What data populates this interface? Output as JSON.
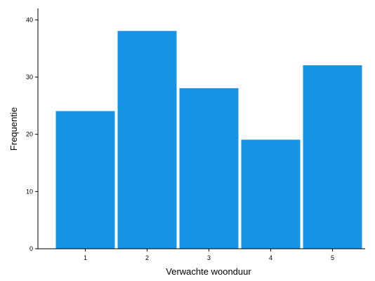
{
  "chart_data": {
    "type": "bar",
    "categories": [
      "1",
      "2",
      "3",
      "4",
      "5"
    ],
    "values": [
      24,
      38,
      28,
      19,
      32
    ],
    "xlabel": "Verwachte woonduur",
    "ylabel": "Frequentie",
    "ylim": [
      0,
      42
    ],
    "yticks": [
      0,
      10,
      20,
      30,
      40
    ],
    "bar_color": "#1793E6",
    "grid": false,
    "legend": "none"
  }
}
